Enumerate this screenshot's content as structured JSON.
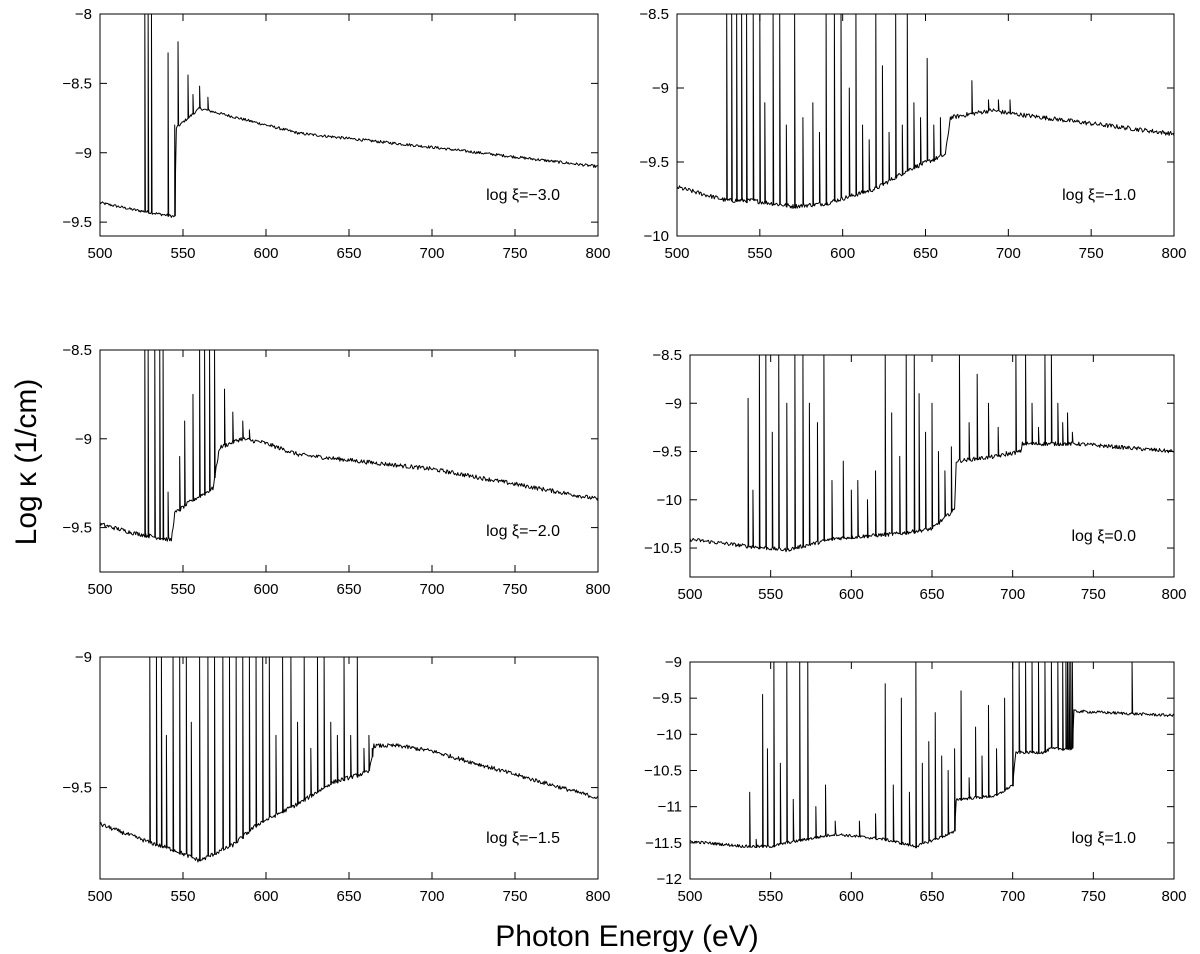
{
  "figure": {
    "xlabel": "Photon Energy (eV)",
    "ylabel": "Log κ (1/cm)"
  },
  "chart_data": [
    {
      "type": "line",
      "annotation": "log ξ=−3.0",
      "xlim": [
        500,
        800
      ],
      "ylim": [
        -9.6,
        -8.0
      ],
      "xticks": [
        500,
        550,
        600,
        650,
        700,
        750,
        800
      ],
      "yticks": [
        -9.5,
        -9,
        -8.5,
        -8
      ],
      "ytick_labels": [
        "−9.5",
        "−9",
        "−8.5",
        "−8"
      ],
      "continuum": [
        [
          500,
          -9.36
        ],
        [
          520,
          -9.41
        ],
        [
          545,
          -9.46
        ],
        [
          546,
          -8.82
        ],
        [
          560,
          -8.68
        ],
        [
          580,
          -8.74
        ],
        [
          620,
          -8.86
        ],
        [
          700,
          -8.96
        ],
        [
          800,
          -9.1
        ]
      ],
      "lines": [
        [
          527,
          -8.0
        ],
        [
          528.5,
          -8.0
        ],
        [
          531,
          -8.0
        ],
        [
          541,
          -8.28
        ],
        [
          545,
          -8.8
        ],
        [
          547,
          -8.2
        ],
        [
          553,
          -8.44
        ],
        [
          556,
          -8.58
        ],
        [
          560,
          -8.52
        ],
        [
          565,
          -8.6
        ]
      ],
      "noise": 0.01
    },
    {
      "type": "line",
      "annotation": "log ξ=−1.0",
      "xlim": [
        500,
        800
      ],
      "ylim": [
        -10.0,
        -8.5
      ],
      "xticks": [
        500,
        550,
        600,
        650,
        700,
        750,
        800
      ],
      "yticks": [
        -10,
        -9.5,
        -9,
        -8.5
      ],
      "ytick_labels": [
        "−10",
        "−9.5",
        "−9",
        "−8.5"
      ],
      "continuum": [
        [
          500,
          -9.67
        ],
        [
          530,
          -9.76
        ],
        [
          545,
          -9.76
        ],
        [
          570,
          -9.8
        ],
        [
          590,
          -9.78
        ],
        [
          620,
          -9.68
        ],
        [
          640,
          -9.55
        ],
        [
          662,
          -9.45
        ],
        [
          665,
          -9.2
        ],
        [
          690,
          -9.15
        ],
        [
          700,
          -9.17
        ],
        [
          800,
          -9.31
        ]
      ],
      "lines": [
        [
          530,
          -8.5
        ],
        [
          533,
          -8.5
        ],
        [
          536,
          -8.5
        ],
        [
          539,
          -8.5
        ],
        [
          542,
          -8.5
        ],
        [
          546,
          -8.5
        ],
        [
          550,
          -8.5
        ],
        [
          553,
          -9.1
        ],
        [
          558,
          -8.5
        ],
        [
          562,
          -8.5
        ],
        [
          566,
          -9.25
        ],
        [
          571,
          -8.5
        ],
        [
          576,
          -9.2
        ],
        [
          582,
          -9.1
        ],
        [
          586,
          -9.3
        ],
        [
          590,
          -8.5
        ],
        [
          595,
          -8.5
        ],
        [
          599,
          -8.5
        ],
        [
          604,
          -9.0
        ],
        [
          608,
          -8.5
        ],
        [
          612,
          -9.25
        ],
        [
          616,
          -9.35
        ],
        [
          620,
          -8.5
        ],
        [
          624,
          -8.85
        ],
        [
          628,
          -9.3
        ],
        [
          632,
          -8.5
        ],
        [
          636,
          -9.25
        ],
        [
          639,
          -8.5
        ],
        [
          643,
          -9.1
        ],
        [
          647,
          -9.2
        ],
        [
          651,
          -8.8
        ],
        [
          655,
          -9.25
        ],
        [
          659,
          -9.2
        ],
        [
          678,
          -8.95
        ],
        [
          688,
          -9.08
        ],
        [
          694,
          -9.08
        ],
        [
          701,
          -9.08
        ]
      ],
      "noise": 0.015
    },
    {
      "type": "line",
      "annotation": "log ξ=−2.0",
      "xlim": [
        500,
        800
      ],
      "ylim": [
        -9.75,
        -8.5
      ],
      "xticks": [
        500,
        550,
        600,
        650,
        700,
        750,
        800
      ],
      "yticks": [
        -9.5,
        -9,
        -8.5
      ],
      "ytick_labels": [
        "−9.5",
        "−9",
        "−8.5"
      ],
      "continuum": [
        [
          500,
          -9.48
        ],
        [
          520,
          -9.53
        ],
        [
          543,
          -9.57
        ],
        [
          545,
          -9.42
        ],
        [
          555,
          -9.35
        ],
        [
          568,
          -9.28
        ],
        [
          572,
          -9.05
        ],
        [
          585,
          -9.0
        ],
        [
          598,
          -9.02
        ],
        [
          620,
          -9.09
        ],
        [
          700,
          -9.17
        ],
        [
          800,
          -9.34
        ]
      ],
      "lines": [
        [
          527,
          -8.5
        ],
        [
          529,
          -8.5
        ],
        [
          533,
          -8.5
        ],
        [
          536,
          -8.5
        ],
        [
          538,
          -8.5
        ],
        [
          541,
          -9.3
        ],
        [
          548,
          -9.1
        ],
        [
          551,
          -8.9
        ],
        [
          556,
          -8.75
        ],
        [
          560,
          -8.5
        ],
        [
          563,
          -8.5
        ],
        [
          566,
          -8.5
        ],
        [
          569,
          -8.5
        ],
        [
          575,
          -8.72
        ],
        [
          580,
          -8.85
        ],
        [
          586,
          -8.9
        ],
        [
          590,
          -8.95
        ]
      ],
      "noise": 0.012
    },
    {
      "type": "line",
      "annotation": "log ξ=0.0",
      "xlim": [
        500,
        800
      ],
      "ylim": [
        -10.8,
        -8.5
      ],
      "xticks": [
        500,
        550,
        600,
        650,
        700,
        750,
        800
      ],
      "yticks": [
        -10.5,
        -10,
        -9.5,
        -9,
        -8.5
      ],
      "ytick_labels": [
        "−10.5",
        "−10",
        "−9.5",
        "−9",
        "−8.5"
      ],
      "continuum": [
        [
          500,
          -10.41
        ],
        [
          535,
          -10.48
        ],
        [
          560,
          -10.52
        ],
        [
          590,
          -10.4
        ],
        [
          630,
          -10.35
        ],
        [
          650,
          -10.3
        ],
        [
          664,
          -10.1
        ],
        [
          665,
          -9.6
        ],
        [
          690,
          -9.55
        ],
        [
          705,
          -9.5
        ],
        [
          706,
          -9.42
        ],
        [
          740,
          -9.42
        ],
        [
          800,
          -9.5
        ]
      ],
      "lines": [
        [
          536,
          -8.95
        ],
        [
          539,
          -9.9
        ],
        [
          543,
          -8.5
        ],
        [
          547,
          -8.5
        ],
        [
          551,
          -9.3
        ],
        [
          555,
          -8.5
        ],
        [
          560,
          -9.0
        ],
        [
          565,
          -8.5
        ],
        [
          570,
          -8.5
        ],
        [
          574,
          -9.0
        ],
        [
          579,
          -9.2
        ],
        [
          583,
          -8.5
        ],
        [
          588,
          -9.8
        ],
        [
          595,
          -9.6
        ],
        [
          600,
          -9.9
        ],
        [
          604,
          -9.8
        ],
        [
          610,
          -10.0
        ],
        [
          615,
          -9.7
        ],
        [
          621,
          -8.5
        ],
        [
          625,
          -9.1
        ],
        [
          630,
          -9.55
        ],
        [
          634,
          -8.5
        ],
        [
          639,
          -8.5
        ],
        [
          642,
          -8.9
        ],
        [
          646,
          -9.3
        ],
        [
          650,
          -9.0
        ],
        [
          654,
          -9.5
        ],
        [
          658,
          -9.7
        ],
        [
          662,
          -9.45
        ],
        [
          667,
          -8.5
        ],
        [
          673,
          -9.2
        ],
        [
          678,
          -8.7
        ],
        [
          685,
          -9.0
        ],
        [
          691,
          -9.25
        ],
        [
          696,
          -9.5
        ],
        [
          702,
          -8.5
        ],
        [
          708,
          -8.5
        ],
        [
          712,
          -9.0
        ],
        [
          716,
          -9.25
        ],
        [
          720,
          -8.5
        ],
        [
          724,
          -8.5
        ],
        [
          728,
          -9.0
        ],
        [
          731,
          -9.2
        ],
        [
          734,
          -9.1
        ],
        [
          737,
          -9.3
        ]
      ],
      "noise": 0.02
    },
    {
      "type": "line",
      "annotation": "log ξ=−1.5",
      "xlim": [
        500,
        800
      ],
      "ylim": [
        -9.85,
        -9.0
      ],
      "xticks": [
        500,
        550,
        600,
        650,
        700,
        750,
        800
      ],
      "yticks": [
        -9.5,
        -9
      ],
      "ytick_labels": [
        "−9.5",
        "−9"
      ],
      "continuum": [
        [
          500,
          -9.64
        ],
        [
          530,
          -9.71
        ],
        [
          545,
          -9.74
        ],
        [
          560,
          -9.78
        ],
        [
          580,
          -9.72
        ],
        [
          595,
          -9.64
        ],
        [
          620,
          -9.56
        ],
        [
          640,
          -9.48
        ],
        [
          662,
          -9.44
        ],
        [
          665,
          -9.34
        ],
        [
          680,
          -9.34
        ],
        [
          700,
          -9.36
        ],
        [
          800,
          -9.54
        ]
      ],
      "lines": [
        [
          530,
          -9.0
        ],
        [
          534,
          -9.0
        ],
        [
          537,
          -9.0
        ],
        [
          540,
          -9.3
        ],
        [
          544,
          -9.0
        ],
        [
          548,
          -9.0
        ],
        [
          552,
          -9.0
        ],
        [
          555,
          -9.25
        ],
        [
          560,
          -9.0
        ],
        [
          565,
          -9.0
        ],
        [
          569,
          -9.0
        ],
        [
          574,
          -9.0
        ],
        [
          578,
          -9.0
        ],
        [
          582,
          -9.0
        ],
        [
          586,
          -9.0
        ],
        [
          590,
          -9.0
        ],
        [
          594,
          -9.0
        ],
        [
          598,
          -9.0
        ],
        [
          602,
          -9.0
        ],
        [
          606,
          -9.3
        ],
        [
          610,
          -9.0
        ],
        [
          615,
          -9.0
        ],
        [
          619,
          -9.25
        ],
        [
          623,
          -9.0
        ],
        [
          627,
          -9.35
        ],
        [
          631,
          -9.0
        ],
        [
          635,
          -9.0
        ],
        [
          639,
          -9.25
        ],
        [
          643,
          -9.3
        ],
        [
          647,
          -9.0
        ],
        [
          651,
          -9.3
        ],
        [
          655,
          -9.0
        ],
        [
          659,
          -9.35
        ],
        [
          662,
          -9.3
        ],
        [
          664,
          -9.35
        ]
      ],
      "noise": 0.008
    },
    {
      "type": "line",
      "annotation": "log ξ=1.0",
      "xlim": [
        500,
        800
      ],
      "ylim": [
        -12.0,
        -9.0
      ],
      "xticks": [
        500,
        550,
        600,
        650,
        700,
        750,
        800
      ],
      "yticks": [
        -12,
        -11.5,
        -11,
        -10.5,
        -10,
        -9.5,
        -9
      ],
      "ytick_labels": [
        "−12",
        "−11.5",
        "−11",
        "−10.5",
        "−10",
        "−9.5",
        "−9"
      ],
      "continuum": [
        [
          500,
          -11.48
        ],
        [
          535,
          -11.55
        ],
        [
          550,
          -11.55
        ],
        [
          560,
          -11.5
        ],
        [
          590,
          -11.38
        ],
        [
          620,
          -11.45
        ],
        [
          640,
          -11.55
        ],
        [
          664,
          -11.35
        ],
        [
          665,
          -10.9
        ],
        [
          690,
          -10.85
        ],
        [
          700,
          -10.7
        ],
        [
          702,
          -10.25
        ],
        [
          720,
          -10.25
        ],
        [
          723,
          -10.2
        ],
        [
          737,
          -10.2
        ],
        [
          738,
          -9.68
        ],
        [
          800,
          -9.74
        ]
      ],
      "lines": [
        [
          537,
          -10.8
        ],
        [
          541,
          -11.45
        ],
        [
          545,
          -9.45
        ],
        [
          548,
          -10.2
        ],
        [
          552,
          -9.0
        ],
        [
          556,
          -10.4
        ],
        [
          560,
          -9.0
        ],
        [
          564,
          -10.9
        ],
        [
          568,
          -9.0
        ],
        [
          573,
          -9.0
        ],
        [
          578,
          -11.0
        ],
        [
          584,
          -10.7
        ],
        [
          590,
          -11.2
        ],
        [
          605,
          -11.2
        ],
        [
          615,
          -11.1
        ],
        [
          621,
          -9.3
        ],
        [
          626,
          -10.7
        ],
        [
          631,
          -9.5
        ],
        [
          636,
          -10.8
        ],
        [
          640,
          -9.0
        ],
        [
          644,
          -10.4
        ],
        [
          648,
          -10.1
        ],
        [
          652,
          -9.7
        ],
        [
          656,
          -10.3
        ],
        [
          660,
          -10.5
        ],
        [
          664,
          -10.2
        ],
        [
          668,
          -9.4
        ],
        [
          673,
          -10.6
        ],
        [
          677,
          -9.9
        ],
        [
          681,
          -10.3
        ],
        [
          685,
          -9.6
        ],
        [
          690,
          -10.2
        ],
        [
          695,
          -9.5
        ],
        [
          700,
          -9.0
        ],
        [
          704,
          -9.0
        ],
        [
          708,
          -9.0
        ],
        [
          712,
          -9.0
        ],
        [
          716,
          -9.0
        ],
        [
          720,
          -9.0
        ],
        [
          724,
          -9.0
        ],
        [
          728,
          -9.0
        ],
        [
          731,
          -9.0
        ],
        [
          733,
          -9.0
        ],
        [
          734,
          -9.0
        ],
        [
          735,
          -9.0
        ],
        [
          736,
          -9.0
        ],
        [
          737,
          -9.0
        ],
        [
          774,
          -9.0
        ]
      ],
      "noise": 0.02
    }
  ]
}
